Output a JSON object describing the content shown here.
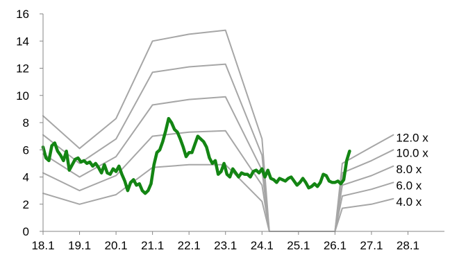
{
  "chart_data": {
    "type": "line",
    "title": "",
    "xlabel": "",
    "ylabel": "",
    "categories": [
      "18.1",
      "19.1",
      "20.1",
      "21.1",
      "22.1",
      "23.1",
      "24.1",
      "25.1",
      "26.1",
      "27.1",
      "28.1"
    ],
    "xlim": [
      0,
      11
    ],
    "ylim": [
      0,
      16
    ],
    "y_ticks": [
      0,
      2,
      4,
      6,
      8,
      10,
      12,
      14,
      16
    ],
    "grid": false,
    "legend": "none",
    "colors": {
      "bands": "#a6a6a6",
      "price": "#138513",
      "axis": "#868686"
    },
    "series": [
      {
        "name": "12.0 x",
        "points": [
          [
            0,
            8.5
          ],
          [
            1,
            6.1
          ],
          [
            2,
            8.3
          ],
          [
            3,
            14.0
          ],
          [
            4,
            14.5
          ],
          [
            5,
            14.8
          ],
          [
            6,
            6.8
          ],
          [
            6.2,
            0.0
          ],
          [
            8.0,
            0.0
          ],
          [
            8.2,
            5.0
          ],
          [
            9,
            6.2
          ],
          [
            9.6,
            7.1
          ]
        ]
      },
      {
        "name": "10.0 x",
        "points": [
          [
            0,
            7.1
          ],
          [
            1,
            5.0
          ],
          [
            2,
            6.8
          ],
          [
            3,
            11.7
          ],
          [
            4,
            12.1
          ],
          [
            5,
            12.3
          ],
          [
            6,
            5.6
          ],
          [
            6.2,
            0.0
          ],
          [
            8.0,
            0.0
          ],
          [
            8.2,
            4.3
          ],
          [
            9,
            5.2
          ],
          [
            9.6,
            6.0
          ]
        ]
      },
      {
        "name": "8.0 x",
        "points": [
          [
            0,
            5.7
          ],
          [
            1,
            4.0
          ],
          [
            2,
            5.5
          ],
          [
            3,
            9.3
          ],
          [
            4,
            9.7
          ],
          [
            5,
            9.9
          ],
          [
            6,
            4.5
          ],
          [
            6.2,
            0.0
          ],
          [
            8.0,
            0.0
          ],
          [
            8.2,
            3.4
          ],
          [
            9,
            4.1
          ],
          [
            9.6,
            4.8
          ]
        ]
      },
      {
        "name": "6.0 x",
        "points": [
          [
            0,
            4.3
          ],
          [
            1,
            3.0
          ],
          [
            2,
            4.1
          ],
          [
            3,
            7.0
          ],
          [
            4,
            7.3
          ],
          [
            5,
            7.4
          ],
          [
            6,
            3.4
          ],
          [
            6.2,
            0.0
          ],
          [
            8.0,
            0.0
          ],
          [
            8.2,
            2.6
          ],
          [
            9,
            3.1
          ],
          [
            9.6,
            3.6
          ]
        ]
      },
      {
        "name": "4.0 x",
        "points": [
          [
            0,
            2.8
          ],
          [
            1,
            2.0
          ],
          [
            2,
            2.7
          ],
          [
            3,
            4.7
          ],
          [
            4,
            4.9
          ],
          [
            5,
            4.9
          ],
          [
            6,
            2.2
          ],
          [
            6.2,
            0.0
          ],
          [
            8.0,
            0.0
          ],
          [
            8.2,
            1.7
          ],
          [
            9,
            2.0
          ],
          [
            9.6,
            2.4
          ]
        ]
      },
      {
        "points": [
          [
            0.0,
            6.2
          ],
          [
            0.08,
            5.4
          ],
          [
            0.16,
            5.2
          ],
          [
            0.24,
            6.3
          ],
          [
            0.32,
            6.5
          ],
          [
            0.4,
            5.9
          ],
          [
            0.48,
            5.6
          ],
          [
            0.56,
            5.2
          ],
          [
            0.64,
            5.9
          ],
          [
            0.72,
            4.5
          ],
          [
            0.8,
            4.9
          ],
          [
            0.88,
            5.3
          ],
          [
            0.96,
            5.4
          ],
          [
            1.04,
            5.1
          ],
          [
            1.12,
            5.2
          ],
          [
            1.2,
            5.0
          ],
          [
            1.28,
            5.1
          ],
          [
            1.36,
            4.8
          ],
          [
            1.44,
            5.0
          ],
          [
            1.52,
            4.7
          ],
          [
            1.6,
            4.3
          ],
          [
            1.68,
            4.9
          ],
          [
            1.76,
            4.3
          ],
          [
            1.84,
            4.2
          ],
          [
            1.92,
            4.6
          ],
          [
            2.0,
            4.4
          ],
          [
            2.08,
            4.8
          ],
          [
            2.16,
            4.2
          ],
          [
            2.24,
            3.7
          ],
          [
            2.32,
            3.0
          ],
          [
            2.4,
            3.6
          ],
          [
            2.48,
            3.8
          ],
          [
            2.56,
            3.4
          ],
          [
            2.64,
            3.5
          ],
          [
            2.72,
            3.0
          ],
          [
            2.8,
            2.8
          ],
          [
            2.88,
            3.0
          ],
          [
            2.96,
            3.5
          ],
          [
            3.04,
            4.9
          ],
          [
            3.12,
            5.8
          ],
          [
            3.2,
            6.0
          ],
          [
            3.28,
            6.6
          ],
          [
            3.36,
            7.4
          ],
          [
            3.44,
            8.3
          ],
          [
            3.52,
            8.0
          ],
          [
            3.6,
            7.5
          ],
          [
            3.68,
            7.3
          ],
          [
            3.76,
            6.8
          ],
          [
            3.84,
            6.2
          ],
          [
            3.92,
            5.5
          ],
          [
            4.0,
            5.8
          ],
          [
            4.08,
            5.8
          ],
          [
            4.16,
            6.4
          ],
          [
            4.24,
            7.0
          ],
          [
            4.32,
            6.8
          ],
          [
            4.4,
            6.6
          ],
          [
            4.48,
            6.2
          ],
          [
            4.56,
            5.4
          ],
          [
            4.64,
            5.0
          ],
          [
            4.72,
            5.2
          ],
          [
            4.8,
            4.2
          ],
          [
            4.88,
            4.4
          ],
          [
            4.96,
            5.0
          ],
          [
            5.04,
            4.2
          ],
          [
            5.12,
            4.0
          ],
          [
            5.2,
            4.6
          ],
          [
            5.28,
            4.3
          ],
          [
            5.36,
            4.0
          ],
          [
            5.44,
            4.3
          ],
          [
            5.52,
            4.2
          ],
          [
            5.6,
            4.2
          ],
          [
            5.68,
            4.0
          ],
          [
            5.76,
            4.4
          ],
          [
            5.84,
            4.5
          ],
          [
            5.92,
            4.3
          ],
          [
            6.0,
            4.6
          ],
          [
            6.08,
            4.0
          ],
          [
            6.16,
            4.5
          ],
          [
            6.24,
            3.9
          ],
          [
            6.32,
            3.8
          ],
          [
            6.4,
            3.6
          ],
          [
            6.48,
            3.9
          ],
          [
            6.56,
            3.8
          ],
          [
            6.64,
            3.7
          ],
          [
            6.72,
            3.9
          ],
          [
            6.8,
            4.0
          ],
          [
            6.88,
            3.7
          ],
          [
            6.96,
            3.4
          ],
          [
            7.04,
            3.6
          ],
          [
            7.12,
            3.9
          ],
          [
            7.2,
            3.6
          ],
          [
            7.28,
            3.2
          ],
          [
            7.36,
            3.3
          ],
          [
            7.44,
            3.5
          ],
          [
            7.52,
            3.3
          ],
          [
            7.6,
            3.6
          ],
          [
            7.68,
            4.2
          ],
          [
            7.76,
            4.1
          ],
          [
            7.84,
            3.7
          ],
          [
            7.92,
            3.6
          ],
          [
            8.0,
            3.6
          ],
          [
            8.08,
            3.7
          ],
          [
            8.16,
            3.5
          ],
          [
            8.24,
            3.8
          ],
          [
            8.32,
            5.2
          ],
          [
            8.4,
            5.9
          ]
        ]
      }
    ]
  }
}
